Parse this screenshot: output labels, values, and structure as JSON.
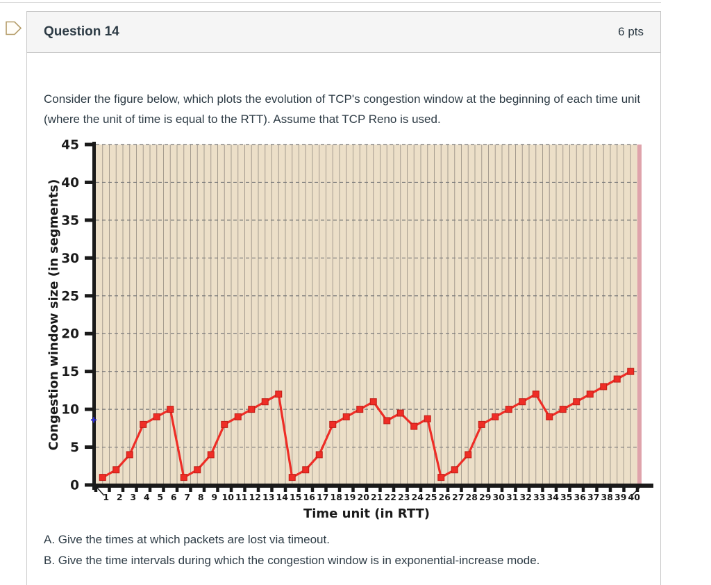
{
  "header": {
    "title": "Question 14",
    "points": "6 pts"
  },
  "prompt": "Consider the figure below, which plots the evolution of TCP's congestion window at the beginning of each time unit (where the unit of time is equal to the RTT). Assume that TCP Reno is used.",
  "questions": {
    "a": "A. Give the times at which packets are lost via timeout.",
    "b": "B. Give the time intervals during which the congestion window is in exponential-increase mode."
  },
  "icons": {
    "flag": "flag-question-icon",
    "axis_marker": "blue-plus-marker"
  },
  "colors": {
    "header_bg": "#f5f5f5",
    "card_border": "#c7c7c7",
    "text": "#2d3b45",
    "flag_outline": "#b49b67"
  },
  "chart_data": {
    "type": "line",
    "title": "",
    "xlabel": "Time unit (in RTT)",
    "ylabel": "Congestion window size (in segments)",
    "x": [
      1,
      2,
      3,
      4,
      5,
      6,
      7,
      8,
      9,
      10,
      11,
      12,
      13,
      14,
      15,
      16,
      17,
      18,
      19,
      20,
      21,
      22,
      23,
      24,
      25,
      26,
      27,
      28,
      29,
      30,
      31,
      32,
      33,
      34,
      35,
      36,
      37,
      38,
      39,
      40
    ],
    "values": [
      1,
      2,
      4,
      8,
      9,
      10,
      1,
      2,
      4,
      8,
      9,
      10,
      11,
      12,
      1,
      2,
      4,
      8,
      9,
      10,
      11,
      8.5,
      9.5,
      7.75,
      8.75,
      1,
      2,
      4,
      8,
      9,
      10,
      11,
      12,
      9,
      10,
      11,
      12,
      13,
      14,
      15
    ],
    "ylim": [
      0,
      45
    ],
    "ytick_step": 5,
    "xtick_every": 1,
    "grid": {
      "vertical": "solid every 0.5 unit",
      "horizontal": "dashed every 5"
    },
    "legend": "none",
    "marker": "square",
    "line_color": "#ee2d26",
    "marker_edge_color": "#c01d16",
    "plot_bg_color": "#ecdfc8",
    "vgrid_color": "#a59c8f",
    "hgrid_color": "#787878",
    "axis_color": "#1a1a1a",
    "right_edge_color": "#dfa3ab",
    "axis_plus_color": "#2a2ad4",
    "axis_plus_value": 8.6
  }
}
